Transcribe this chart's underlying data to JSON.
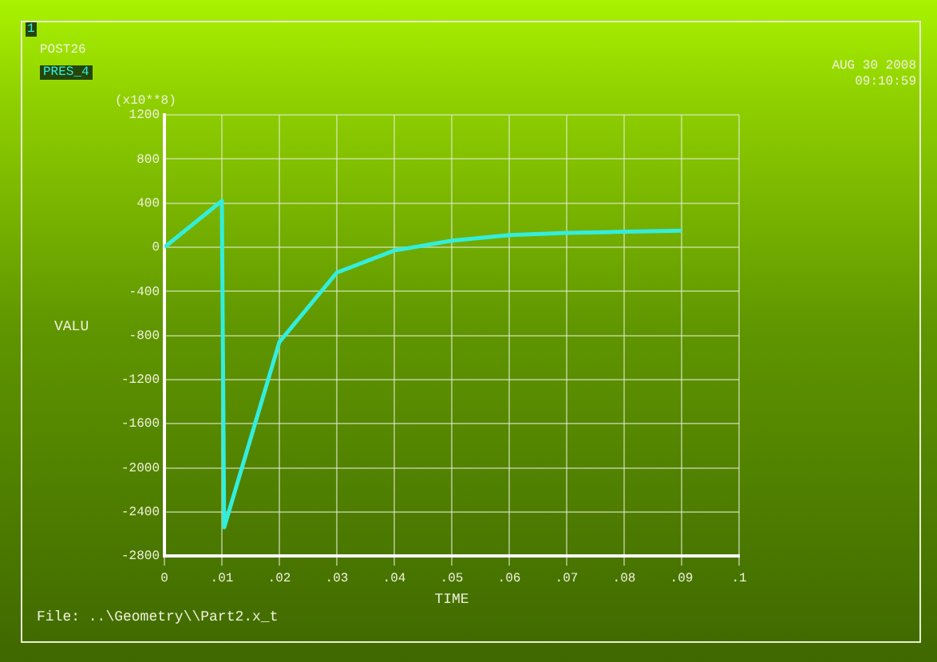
{
  "chart_data": {
    "type": "line",
    "xlabel": "TIME",
    "ylabel": "VALU",
    "x": [
      0,
      0.01,
      0.0104,
      0.02,
      0.03,
      0.04,
      0.05,
      0.06,
      0.07,
      0.08,
      0.09
    ],
    "series": [
      {
        "name": "PRES_4",
        "color": "#33eedd",
        "values": [
          0,
          420,
          -2540,
          -860,
          -230,
          -30,
          60,
          110,
          130,
          140,
          150
        ]
      }
    ],
    "xlim": [
      0,
      0.1
    ],
    "xticks": [
      {
        "value": 0,
        "label": "0"
      },
      {
        "value": 0.01,
        "label": ".01"
      },
      {
        "value": 0.02,
        "label": ".02"
      },
      {
        "value": 0.03,
        "label": ".03"
      },
      {
        "value": 0.04,
        "label": ".04"
      },
      {
        "value": 0.05,
        "label": ".05"
      },
      {
        "value": 0.06,
        "label": ".06"
      },
      {
        "value": 0.07,
        "label": ".07"
      },
      {
        "value": 0.08,
        "label": ".08"
      },
      {
        "value": 0.09,
        "label": ".09"
      },
      {
        "value": 0.1,
        "label": ".1"
      }
    ],
    "ylim": [
      -2800,
      1200
    ],
    "yticks": [
      -2800,
      -2400,
      -2000,
      -1600,
      -1200,
      -800,
      -400,
      0,
      400,
      800,
      1200
    ],
    "grid": true,
    "legend": "top left",
    "marker": "none",
    "line_style": "solid",
    "annotations": [
      "1",
      "POST26",
      "AUG 30 2008",
      "09:10:59",
      "(x10**8)",
      "File: ..\\Geometry\\\\Part2.x_t"
    ]
  }
}
